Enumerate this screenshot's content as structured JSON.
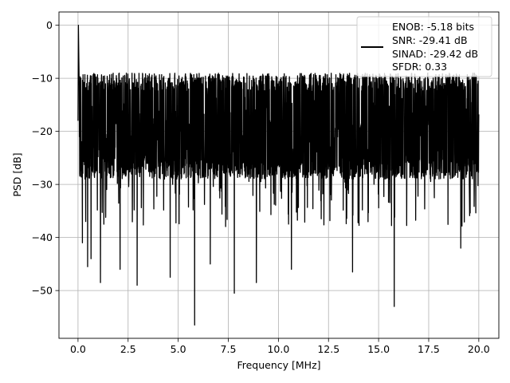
{
  "chart_data": {
    "type": "line",
    "title": "",
    "xlabel": "Frequency [MHz]",
    "ylabel": "PSD [dB]",
    "xlim": [
      -0.95,
      21.0
    ],
    "ylim": [
      -59.0,
      2.5
    ],
    "xticks": [
      0.0,
      2.5,
      5.0,
      7.5,
      10.0,
      12.5,
      15.0,
      17.5,
      20.0
    ],
    "xtick_labels": [
      "0.0",
      "2.5",
      "5.0",
      "7.5",
      "10.0",
      "12.5",
      "15.0",
      "17.5",
      "20.0"
    ],
    "yticks": [
      0,
      -10,
      -20,
      -30,
      -40,
      -50
    ],
    "ytick_labels": [
      "0",
      "−10",
      "−20",
      "−30",
      "−40",
      "−50"
    ],
    "grid": true,
    "legend_position": "top-right",
    "legend_lines": [
      "ENOB: -5.18 bits",
      "SNR: -29.41 dB",
      "SINAD: -29.42 dB",
      "SFDR: 0.33"
    ],
    "series": [
      {
        "color": "#000000",
        "x_range": [
          0.0,
          20.0
        ],
        "peak": {
          "x": 0.02,
          "y": 0.0
        },
        "noise_floor_upper": -9.0,
        "noise_floor_lower": -29.0,
        "notable_minima": [
          {
            "x": 0.22,
            "y": -41.0
          },
          {
            "x": 0.48,
            "y": -45.5
          },
          {
            "x": 0.65,
            "y": -44.0
          },
          {
            "x": 1.12,
            "y": -48.5
          },
          {
            "x": 2.1,
            "y": -46.0
          },
          {
            "x": 2.95,
            "y": -49.0
          },
          {
            "x": 4.6,
            "y": -47.5
          },
          {
            "x": 5.82,
            "y": -56.5
          },
          {
            "x": 6.6,
            "y": -45.0
          },
          {
            "x": 7.8,
            "y": -50.5
          },
          {
            "x": 8.9,
            "y": -48.5
          },
          {
            "x": 10.65,
            "y": -46.0
          },
          {
            "x": 13.7,
            "y": -46.5
          },
          {
            "x": 15.78,
            "y": -53.0
          },
          {
            "x": 19.1,
            "y": -42.0
          }
        ]
      }
    ]
  }
}
